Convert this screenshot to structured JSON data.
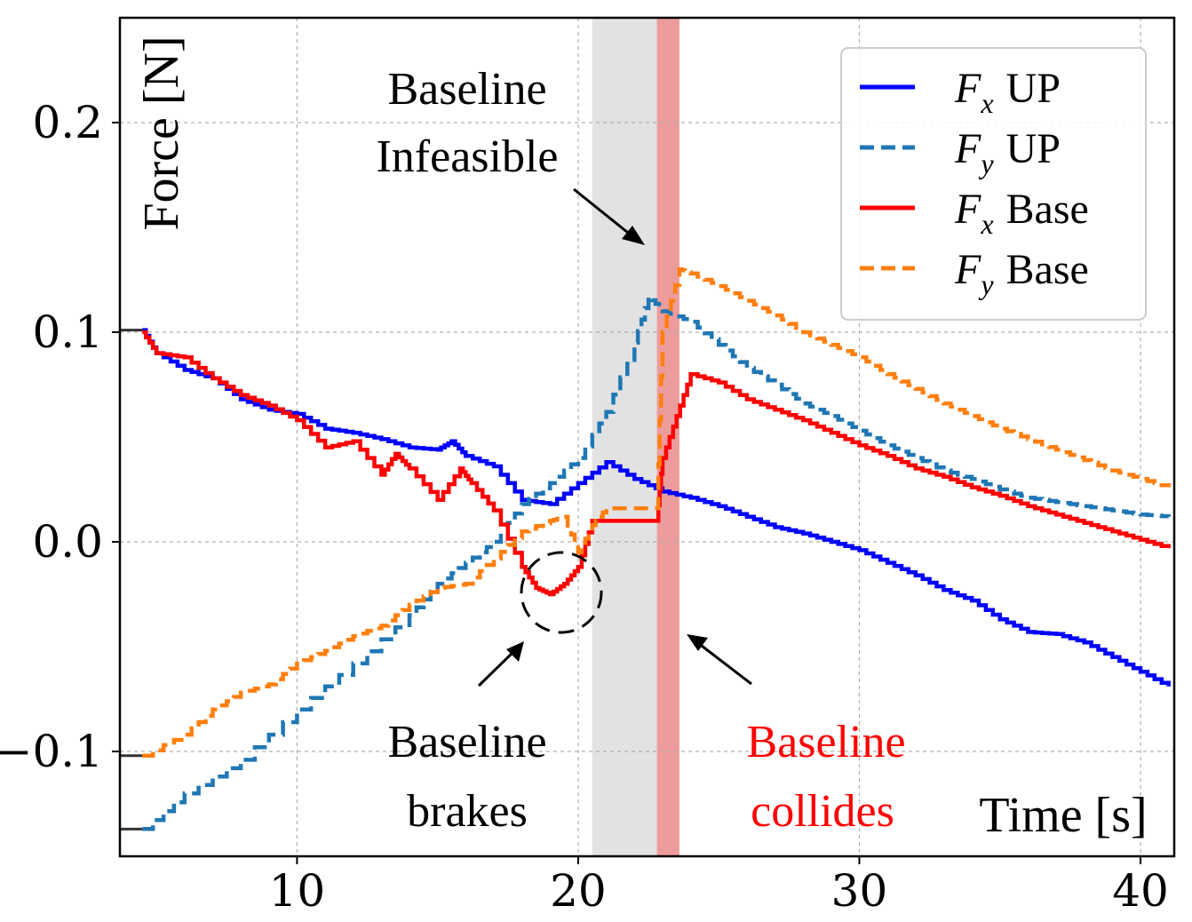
{
  "chart_data": {
    "type": "line",
    "title": "",
    "xlabel": "Time [s]",
    "ylabel": "Force [N]",
    "xlim": [
      3.7,
      41.2
    ],
    "ylim": [
      -0.15,
      0.25
    ],
    "xticks": [
      10,
      20,
      30,
      40
    ],
    "yticks": [
      0.2,
      0.1,
      0.0,
      -0.1
    ],
    "xtick_labels": [
      "10",
      "20",
      "30",
      "40"
    ],
    "ytick_labels": [
      "0.2",
      "0.1",
      "0.0",
      "−0.1"
    ],
    "grid": true,
    "legend_position": "top-right",
    "legend": [
      {
        "label": "F",
        "sub": "x",
        "suffix": "UP",
        "color": "#0000ff",
        "style": "solid"
      },
      {
        "label": "F",
        "sub": "y",
        "suffix": "UP",
        "color": "#1f77b4",
        "style": "dashed"
      },
      {
        "label": "F",
        "sub": "x",
        "suffix": "Base",
        "color": "#ff0000",
        "style": "solid"
      },
      {
        "label": "F",
        "sub": "y",
        "suffix": "Base",
        "color": "#ff7f0e",
        "style": "dashed"
      }
    ],
    "shaded_regions": [
      {
        "name": "infeasible",
        "x": [
          20.5,
          22.8
        ],
        "color": "#cfcfcf"
      },
      {
        "name": "collision",
        "x": [
          22.8,
          23.6
        ],
        "color": "#e05a5a"
      }
    ],
    "series": [
      {
        "name": "Fx UP",
        "color": "#0000ff",
        "style": "solid",
        "x": [
          4.5,
          5,
          6,
          7,
          8,
          9,
          10,
          11,
          12,
          13,
          14,
          15,
          15.5,
          16,
          17,
          18,
          19,
          20,
          21,
          22,
          23,
          24,
          25,
          26,
          27,
          28,
          29,
          30,
          31,
          32,
          33,
          34,
          35,
          36,
          37,
          38,
          39,
          40,
          41
        ],
        "values": [
          0.101,
          0.09,
          0.082,
          0.078,
          0.068,
          0.063,
          0.061,
          0.054,
          0.052,
          0.049,
          0.045,
          0.044,
          0.048,
          0.041,
          0.036,
          0.02,
          0.018,
          0.028,
          0.038,
          0.03,
          0.024,
          0.021,
          0.017,
          0.012,
          0.007,
          0.004,
          0.0,
          -0.004,
          -0.01,
          -0.016,
          -0.023,
          -0.028,
          -0.037,
          -0.043,
          -0.044,
          -0.048,
          -0.055,
          -0.062,
          -0.069
        ]
      },
      {
        "name": "Fy UP",
        "color": "#1f77b4",
        "style": "dashed",
        "x": [
          4.5,
          6,
          8,
          10,
          12,
          14,
          15,
          16,
          17,
          18,
          19,
          20,
          21,
          22,
          22.5,
          23,
          24,
          25,
          26,
          27,
          28,
          29,
          30,
          31,
          32,
          33,
          34,
          35,
          36,
          37,
          38,
          39,
          40,
          41
        ],
        "values": [
          -0.137,
          -0.12,
          -0.104,
          -0.08,
          -0.058,
          -0.035,
          -0.02,
          -0.01,
          0.0,
          0.018,
          0.028,
          0.04,
          0.062,
          0.095,
          0.117,
          0.11,
          0.105,
          0.094,
          0.083,
          0.075,
          0.066,
          0.06,
          0.053,
          0.046,
          0.04,
          0.034,
          0.03,
          0.025,
          0.021,
          0.019,
          0.017,
          0.015,
          0.013,
          0.012
        ]
      },
      {
        "name": "Fx Base",
        "color": "#ff0000",
        "style": "solid",
        "x": [
          4.5,
          5,
          6,
          7,
          8,
          9,
          10,
          11,
          12,
          13,
          13.5,
          14,
          15,
          15.8,
          16.2,
          17,
          18,
          18.5,
          19,
          19.5,
          20,
          20.5,
          21,
          22,
          22.8,
          23,
          23.5,
          24,
          25,
          26,
          27,
          28,
          29,
          30,
          31,
          32,
          33,
          34,
          35,
          36,
          37,
          38,
          39,
          40,
          41
        ],
        "values": [
          0.1,
          0.09,
          0.088,
          0.078,
          0.07,
          0.065,
          0.058,
          0.045,
          0.048,
          0.032,
          0.042,
          0.035,
          0.02,
          0.035,
          0.028,
          0.015,
          -0.012,
          -0.022,
          -0.025,
          -0.02,
          -0.012,
          0.01,
          0.01,
          0.01,
          0.01,
          0.04,
          0.06,
          0.08,
          0.076,
          0.068,
          0.063,
          0.058,
          0.052,
          0.046,
          0.041,
          0.035,
          0.031,
          0.026,
          0.022,
          0.017,
          0.013,
          0.009,
          0.005,
          0.001,
          -0.003
        ]
      },
      {
        "name": "Fy Base",
        "color": "#ff7f0e",
        "style": "dashed",
        "x": [
          4.5,
          6,
          7,
          8,
          9,
          10,
          11,
          12,
          13,
          14,
          15,
          16,
          17,
          18,
          19,
          19.5,
          20,
          20.5,
          21,
          22,
          22.8,
          23,
          23.6,
          24,
          25,
          26,
          27,
          28,
          29,
          30,
          31,
          32,
          33,
          34,
          35,
          36,
          37,
          38,
          39,
          40,
          41
        ],
        "values": [
          -0.102,
          -0.092,
          -0.08,
          -0.072,
          -0.068,
          -0.058,
          -0.052,
          -0.045,
          -0.04,
          -0.03,
          -0.022,
          -0.02,
          -0.008,
          0.005,
          0.01,
          0.012,
          -0.005,
          0.008,
          0.016,
          0.016,
          0.016,
          0.1,
          0.13,
          0.128,
          0.122,
          0.115,
          0.108,
          0.1,
          0.094,
          0.088,
          0.08,
          0.073,
          0.066,
          0.06,
          0.054,
          0.049,
          0.044,
          0.039,
          0.034,
          0.03,
          0.026
        ]
      }
    ],
    "left_stubs": [
      {
        "color": "#333333",
        "x": [
          3.7,
          4.5
        ],
        "values": [
          0.101,
          0.101
        ]
      },
      {
        "color": "#333333",
        "x": [
          3.7,
          4.5
        ],
        "values": [
          -0.102,
          -0.102
        ]
      },
      {
        "color": "#333333",
        "x": [
          3.7,
          4.5
        ],
        "values": [
          -0.137,
          -0.137
        ]
      }
    ],
    "annotations": [
      {
        "name": "infeasible",
        "lines": [
          "Baseline",
          "Infeasible"
        ],
        "color": "#000000"
      },
      {
        "name": "brakes",
        "lines": [
          "Baseline",
          "brakes"
        ],
        "color": "#000000"
      },
      {
        "name": "collides",
        "lines": [
          "Baseline",
          "collides"
        ],
        "color": "#ff0000"
      }
    ]
  }
}
